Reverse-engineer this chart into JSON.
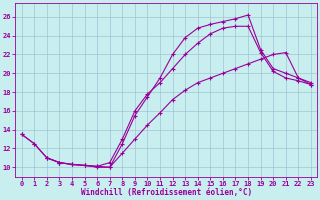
{
  "bg_color": "#c8eef0",
  "line_color": "#990099",
  "grid_color": "#99bbcc",
  "xlabel": "Windchill (Refroidissement éolien,°C)",
  "xlim": [
    -0.5,
    23.5
  ],
  "ylim": [
    9.0,
    27.5
  ],
  "xticks": [
    0,
    1,
    2,
    3,
    4,
    5,
    6,
    7,
    8,
    9,
    10,
    11,
    12,
    13,
    14,
    15,
    16,
    17,
    18,
    19,
    20,
    21,
    22,
    23
  ],
  "yticks": [
    10,
    12,
    14,
    16,
    18,
    20,
    22,
    24,
    26
  ],
  "line1_x": [
    0,
    1,
    2,
    3,
    4,
    5,
    6,
    7,
    8,
    9,
    10,
    11,
    12,
    13,
    14,
    15,
    16,
    17,
    18,
    19,
    20,
    21,
    22,
    23
  ],
  "line1_y": [
    13.5,
    12.5,
    11.0,
    10.5,
    10.3,
    10.2,
    10.1,
    10.0,
    12.5,
    15.5,
    17.5,
    19.5,
    22.0,
    23.8,
    24.8,
    25.2,
    25.5,
    25.8,
    26.2,
    22.5,
    20.5,
    20.0,
    19.5,
    19.0
  ],
  "line2_x": [
    0,
    1,
    2,
    3,
    4,
    5,
    6,
    7,
    8,
    9,
    10,
    11,
    12,
    13,
    14,
    15,
    16,
    17,
    18,
    19,
    20,
    21,
    22,
    23
  ],
  "line2_y": [
    13.5,
    12.5,
    11.0,
    10.5,
    10.3,
    10.2,
    10.1,
    10.5,
    13.0,
    16.0,
    17.8,
    19.0,
    20.5,
    22.0,
    23.2,
    24.2,
    24.8,
    25.0,
    25.0,
    22.2,
    20.2,
    19.5,
    19.2,
    18.8
  ],
  "line3_x": [
    2,
    3,
    4,
    5,
    6,
    7,
    8,
    9,
    10,
    11,
    12,
    13,
    14,
    15,
    16,
    17,
    18,
    19,
    20,
    21,
    22,
    23
  ],
  "line3_y": [
    11.0,
    10.5,
    10.3,
    10.2,
    10.0,
    10.0,
    11.5,
    13.0,
    14.5,
    15.8,
    17.2,
    18.2,
    19.0,
    19.5,
    20.0,
    20.5,
    21.0,
    21.5,
    22.0,
    22.2,
    19.5,
    18.8
  ]
}
